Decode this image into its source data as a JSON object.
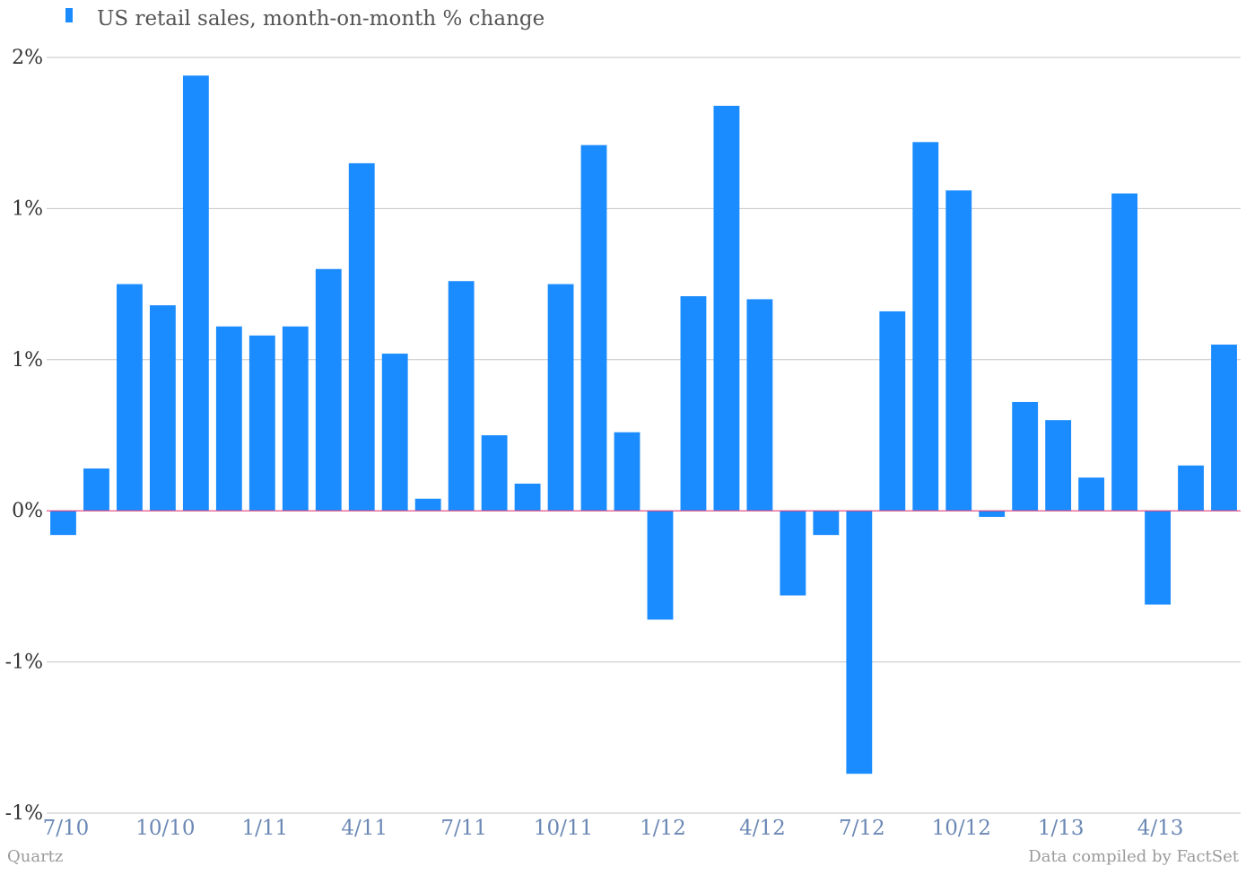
{
  "legend": {
    "label": "US retail sales, month-on-month % change",
    "color": "#1a8cff"
  },
  "chart_data": {
    "type": "bar",
    "title": "",
    "xlabel": "",
    "ylabel": "",
    "ylim": [
      -1.0,
      1.5
    ],
    "y_ticks": [
      {
        "value": 1.5,
        "label": "2%"
      },
      {
        "value": 1.0,
        "label": "1%"
      },
      {
        "value": 0.5,
        "label": "1%"
      },
      {
        "value": 0.0,
        "label": "0%"
      },
      {
        "value": -0.5,
        "label": "-1%"
      },
      {
        "value": -1.0,
        "label": "-1%"
      }
    ],
    "x_tick_labels": [
      "7/10",
      "10/10",
      "1/11",
      "4/11",
      "7/11",
      "10/11",
      "1/12",
      "4/12",
      "7/12",
      "10/12",
      "1/13",
      "4/13"
    ],
    "categories": [
      "7/10",
      "8/10",
      "9/10",
      "10/10",
      "11/10",
      "12/10",
      "1/11",
      "2/11",
      "3/11",
      "4/11",
      "5/11",
      "6/11",
      "7/11",
      "8/11",
      "9/11",
      "10/11",
      "11/11",
      "12/11",
      "1/12",
      "2/12",
      "3/12",
      "4/12",
      "5/12",
      "6/12",
      "7/12",
      "8/12",
      "9/12",
      "10/12",
      "11/12",
      "12/12",
      "1/13",
      "2/13",
      "3/13",
      "4/13",
      "5/13",
      "6/13"
    ],
    "values": [
      -0.08,
      0.14,
      0.75,
      0.68,
      1.44,
      0.61,
      0.58,
      0.61,
      0.8,
      1.15,
      0.52,
      0.04,
      0.76,
      0.25,
      0.09,
      0.75,
      1.21,
      0.26,
      -0.36,
      0.71,
      1.34,
      0.7,
      -0.28,
      -0.08,
      -0.87,
      0.66,
      1.22,
      1.06,
      -0.02,
      0.36,
      0.3,
      0.11,
      1.05,
      -0.31,
      0.15,
      0.55
    ],
    "series": [
      {
        "name": "US retail sales, month-on-month % change",
        "color": "#1a8cff"
      }
    ],
    "grid": true,
    "legend_position": "top-left",
    "zero_line_color": "#e0407a"
  },
  "footer": {
    "left": "Quartz",
    "right": "Data compiled by FactSet"
  }
}
